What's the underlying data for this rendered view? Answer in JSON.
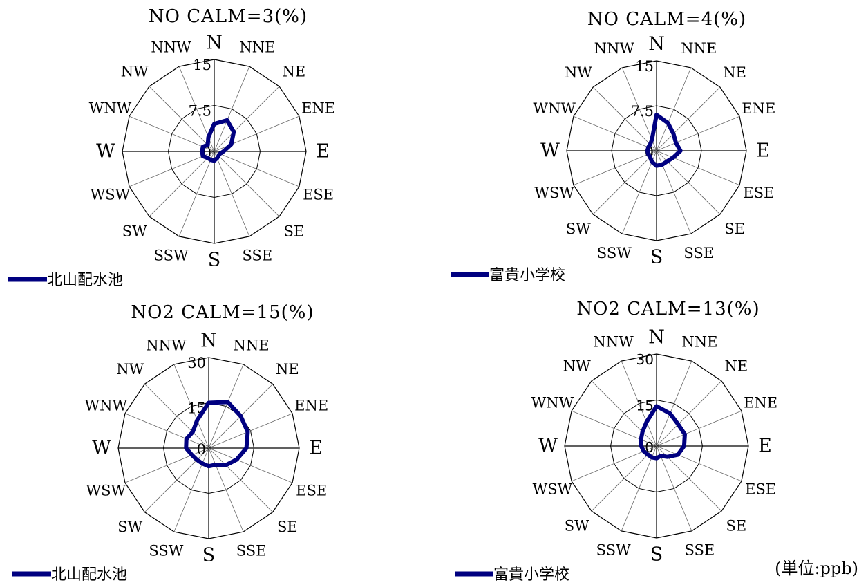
{
  "directions": [
    "N",
    "NNE",
    "NE",
    "ENE",
    "E",
    "ESE",
    "SE",
    "SSE",
    "S",
    "SSW",
    "SW",
    "WSW",
    "W",
    "WNW",
    "NW",
    "NNW"
  ],
  "unit_label": "(単位:ppb)",
  "series_color": "#000080",
  "chart_data": [
    {
      "type": "radar",
      "title": "NO  CALM=3(%)",
      "ylim": [
        0,
        15
      ],
      "tick_labels": [
        "0",
        "7.5",
        "15"
      ],
      "legend": "北山配水池",
      "series": [
        {
          "name": "北山配水池",
          "values": [
            4.5,
            5.5,
            4.5,
            3.0,
            1.5,
            1.0,
            1.0,
            1.2,
            1.5,
            1.5,
            1.5,
            2.0,
            2.0,
            2.0,
            1.5,
            2.5
          ]
        }
      ]
    },
    {
      "type": "radar",
      "title": "NO  CALM=4(%)",
      "ylim": [
        0,
        15
      ],
      "tick_labels": [
        "0",
        "7.5",
        "15"
      ],
      "legend": "富貴小学校",
      "series": [
        {
          "name": "富貴小学校",
          "values": [
            6.0,
            5.0,
            4.0,
            3.5,
            4.0,
            3.0,
            2.5,
            2.5,
            2.5,
            2.0,
            1.5,
            1.5,
            1.5,
            1.5,
            1.5,
            2.0
          ]
        }
      ]
    },
    {
      "type": "radar",
      "title": "NO2  CALM=15(%)",
      "ylim": [
        0,
        30
      ],
      "tick_labels": [
        "0",
        "15",
        "30"
      ],
      "legend": "北山配水池",
      "series": [
        {
          "name": "北山配水池",
          "values": [
            15.0,
            16.5,
            15.0,
            14.0,
            12.5,
            10.0,
            8.0,
            6.0,
            6.0,
            5.5,
            5.5,
            6.0,
            7.5,
            8.0,
            7.5,
            10.0
          ]
        }
      ]
    },
    {
      "type": "radar",
      "title": "NO2  CALM=13(%)",
      "ylim": [
        0,
        30
      ],
      "tick_labels": [
        "0",
        "15",
        "30"
      ],
      "legend": "富貴小学校",
      "series": [
        {
          "name": "富貴小学校",
          "values": [
            13.0,
            11.5,
            10.0,
            10.0,
            9.0,
            7.5,
            5.0,
            3.5,
            4.0,
            4.0,
            4.0,
            4.5,
            5.0,
            5.5,
            6.5,
            8.5
          ]
        }
      ]
    }
  ]
}
